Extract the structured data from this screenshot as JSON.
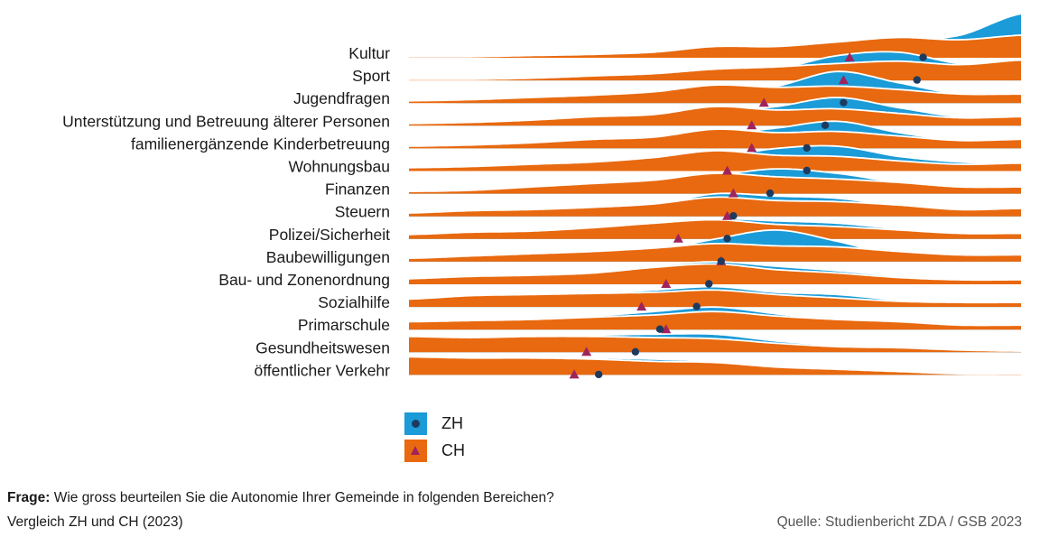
{
  "chart_data": {
    "type": "ridgeline",
    "title": "",
    "xlabel": "",
    "ylabel": "",
    "xlim": [
      0,
      10
    ],
    "grid": false,
    "legend_position": "bottom-left",
    "colors": {
      "ZH": "#1b9bd7",
      "CH": "#e8690f",
      "ZH_marker": "#1f3a5f",
      "CH_marker": "#a0245c"
    },
    "legend": [
      {
        "name": "ZH",
        "marker": "dot"
      },
      {
        "name": "CH",
        "marker": "triangle"
      }
    ],
    "categories": [
      "Kultur",
      "Sport",
      "Jugendfragen",
      "Unterstützung und Betreuung älterer Personen",
      "familienergänzende Kinderbetreuung",
      "Wohnungsbau",
      "Finanzen",
      "Steuern",
      "Polizei/Sicherheit",
      "Baubewilligungen",
      "Bau- und Zonenordnung",
      "Sozialhilfe",
      "Primarschule",
      "Gesundheitswesen",
      "öffentlicher Verkehr"
    ],
    "scale_points": [
      0,
      1,
      2,
      3,
      4,
      5,
      6,
      7,
      8,
      9,
      10
    ],
    "series": [
      {
        "name": "ZH",
        "means": [
          8.4,
          8.3,
          7.1,
          6.8,
          6.5,
          6.5,
          5.9,
          5.3,
          5.2,
          5.1,
          4.9,
          4.7,
          4.1,
          3.7,
          3.1
        ],
        "distributions": [
          [
            0,
            0,
            0.01,
            0.02,
            0.03,
            0.05,
            0.05,
            0.1,
            0.15,
            0.2,
            0.39
          ],
          [
            0,
            0,
            0.01,
            0.02,
            0.03,
            0.06,
            0.1,
            0.22,
            0.25,
            0.15,
            0.16
          ],
          [
            0,
            0.01,
            0.02,
            0.04,
            0.06,
            0.1,
            0.15,
            0.28,
            0.18,
            0.08,
            0.08
          ],
          [
            0,
            0.01,
            0.02,
            0.04,
            0.07,
            0.12,
            0.17,
            0.25,
            0.16,
            0.08,
            0.08
          ],
          [
            0.01,
            0.01,
            0.03,
            0.05,
            0.08,
            0.12,
            0.18,
            0.24,
            0.14,
            0.07,
            0.07
          ],
          [
            0.01,
            0.02,
            0.03,
            0.05,
            0.08,
            0.12,
            0.2,
            0.22,
            0.13,
            0.08,
            0.06
          ],
          [
            0.01,
            0.02,
            0.04,
            0.06,
            0.1,
            0.16,
            0.22,
            0.18,
            0.1,
            0.06,
            0.05
          ],
          [
            0.02,
            0.04,
            0.05,
            0.07,
            0.1,
            0.2,
            0.18,
            0.16,
            0.09,
            0.05,
            0.04
          ],
          [
            0.03,
            0.04,
            0.05,
            0.08,
            0.14,
            0.18,
            0.16,
            0.14,
            0.09,
            0.05,
            0.04
          ],
          [
            0.02,
            0.03,
            0.04,
            0.06,
            0.1,
            0.2,
            0.28,
            0.18,
            0.05,
            0.02,
            0.02
          ],
          [
            0.03,
            0.05,
            0.06,
            0.09,
            0.16,
            0.2,
            0.16,
            0.12,
            0.07,
            0.03,
            0.02
          ],
          [
            0.05,
            0.06,
            0.08,
            0.12,
            0.15,
            0.18,
            0.13,
            0.11,
            0.06,
            0.03,
            0.03
          ],
          [
            0.06,
            0.08,
            0.1,
            0.12,
            0.16,
            0.2,
            0.14,
            0.08,
            0.04,
            0.01,
            0.01
          ],
          [
            0.09,
            0.1,
            0.12,
            0.15,
            0.16,
            0.16,
            0.1,
            0.06,
            0.04,
            0.01,
            0.01
          ],
          [
            0.14,
            0.14,
            0.15,
            0.15,
            0.14,
            0.12,
            0.08,
            0.05,
            0.02,
            0.01,
            0
          ]
        ]
      },
      {
        "name": "CH",
        "means": [
          7.2,
          7.1,
          5.8,
          5.6,
          5.6,
          5.2,
          5.3,
          5.2,
          4.4,
          5.1,
          4.2,
          3.8,
          4.2,
          2.9,
          2.7
        ],
        "distributions": [
          [
            0.01,
            0.01,
            0.02,
            0.03,
            0.05,
            0.1,
            0.1,
            0.14,
            0.18,
            0.16,
            0.2
          ],
          [
            0.01,
            0.01,
            0.02,
            0.04,
            0.06,
            0.1,
            0.12,
            0.15,
            0.17,
            0.14,
            0.18
          ],
          [
            0.02,
            0.03,
            0.05,
            0.07,
            0.1,
            0.16,
            0.14,
            0.15,
            0.12,
            0.08,
            0.08
          ],
          [
            0.02,
            0.03,
            0.05,
            0.08,
            0.1,
            0.17,
            0.14,
            0.15,
            0.11,
            0.07,
            0.08
          ],
          [
            0.02,
            0.03,
            0.05,
            0.08,
            0.1,
            0.17,
            0.14,
            0.15,
            0.11,
            0.07,
            0.08
          ],
          [
            0.03,
            0.04,
            0.06,
            0.08,
            0.12,
            0.18,
            0.14,
            0.13,
            0.09,
            0.06,
            0.07
          ],
          [
            0.02,
            0.03,
            0.06,
            0.09,
            0.12,
            0.18,
            0.15,
            0.13,
            0.1,
            0.06,
            0.06
          ],
          [
            0.03,
            0.05,
            0.06,
            0.08,
            0.11,
            0.17,
            0.14,
            0.13,
            0.1,
            0.06,
            0.07
          ],
          [
            0.04,
            0.06,
            0.07,
            0.1,
            0.14,
            0.17,
            0.13,
            0.11,
            0.08,
            0.05,
            0.05
          ],
          [
            0.03,
            0.05,
            0.07,
            0.09,
            0.12,
            0.16,
            0.14,
            0.13,
            0.09,
            0.06,
            0.06
          ],
          [
            0.05,
            0.07,
            0.08,
            0.1,
            0.15,
            0.18,
            0.13,
            0.1,
            0.06,
            0.04,
            0.04
          ],
          [
            0.07,
            0.1,
            0.11,
            0.12,
            0.13,
            0.15,
            0.11,
            0.08,
            0.05,
            0.04,
            0.04
          ],
          [
            0.07,
            0.08,
            0.09,
            0.11,
            0.13,
            0.16,
            0.12,
            0.09,
            0.07,
            0.04,
            0.04
          ],
          [
            0.14,
            0.13,
            0.14,
            0.14,
            0.13,
            0.12,
            0.08,
            0.05,
            0.04,
            0.02,
            0.01
          ],
          [
            0.16,
            0.15,
            0.15,
            0.14,
            0.12,
            0.11,
            0.07,
            0.05,
            0.03,
            0.01,
            0.01
          ]
        ]
      }
    ]
  },
  "footer": {
    "question_label": "Frage:",
    "question": "Wie gross beurteilen Sie die Autonomie Ihrer Gemeinde in folgenden Bereichen?",
    "subtitle": "Vergleich ZH und CH (2023)",
    "source": "Quelle: Studienbericht ZDA / GSB 2023"
  }
}
